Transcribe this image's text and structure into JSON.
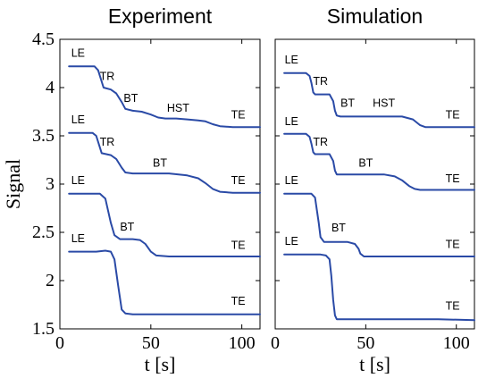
{
  "chart_data": [
    {
      "type": "line",
      "title": "Experiment",
      "xlabel": "t [s]",
      "ylabel": "Signal",
      "xlim": [
        0,
        110
      ],
      "ylim": [
        1.5,
        4.5
      ],
      "xticks": [
        "0",
        "50",
        "100"
      ],
      "yticks": [
        "1.5",
        "2",
        "2.5",
        "3",
        "3.5",
        "4",
        "4.5"
      ],
      "grid": false,
      "series": [
        {
          "x": [
            5,
            19,
            21,
            24,
            28,
            31,
            34,
            36,
            40,
            45,
            50,
            54,
            58,
            64,
            70,
            76,
            80,
            84,
            88,
            95,
            110
          ],
          "y": [
            4.22,
            4.22,
            4.18,
            4.0,
            3.98,
            3.94,
            3.85,
            3.78,
            3.76,
            3.75,
            3.72,
            3.69,
            3.68,
            3.68,
            3.67,
            3.66,
            3.65,
            3.62,
            3.6,
            3.59,
            3.59
          ]
        },
        {
          "x": [
            5,
            18,
            20,
            23,
            28,
            31,
            34,
            36,
            40,
            50,
            60,
            70,
            76,
            80,
            84,
            88,
            95,
            110
          ],
          "y": [
            3.53,
            3.53,
            3.5,
            3.32,
            3.3,
            3.26,
            3.17,
            3.12,
            3.11,
            3.11,
            3.11,
            3.09,
            3.06,
            3.01,
            2.95,
            2.92,
            2.91,
            2.91
          ]
        },
        {
          "x": [
            5,
            22,
            25,
            28,
            30,
            33,
            40,
            44,
            47,
            50,
            53,
            60,
            80,
            110
          ],
          "y": [
            2.9,
            2.9,
            2.85,
            2.6,
            2.47,
            2.43,
            2.43,
            2.42,
            2.38,
            2.3,
            2.26,
            2.25,
            2.25,
            2.25
          ]
        },
        {
          "x": [
            5,
            20,
            25,
            28,
            30,
            32,
            34,
            36,
            40,
            60,
            80,
            110
          ],
          "y": [
            2.3,
            2.3,
            2.31,
            2.3,
            2.22,
            1.95,
            1.7,
            1.66,
            1.65,
            1.65,
            1.65,
            1.65
          ]
        }
      ],
      "annotations": [
        {
          "text": "LE",
          "x": 10,
          "y": 4.32
        },
        {
          "text": "TR",
          "x": 26,
          "y": 4.08
        },
        {
          "text": "BT",
          "x": 39,
          "y": 3.85
        },
        {
          "text": "HST",
          "x": 65,
          "y": 3.75
        },
        {
          "text": "TE",
          "x": 98,
          "y": 3.68
        },
        {
          "text": "LE",
          "x": 10,
          "y": 3.63
        },
        {
          "text": "TR",
          "x": 26,
          "y": 3.4
        },
        {
          "text": "BT",
          "x": 55,
          "y": 3.18
        },
        {
          "text": "TE",
          "x": 98,
          "y": 3.0
        },
        {
          "text": "LE",
          "x": 10,
          "y": 3.0
        },
        {
          "text": "BT",
          "x": 37,
          "y": 2.52
        },
        {
          "text": "TE",
          "x": 98,
          "y": 2.33
        },
        {
          "text": "LE",
          "x": 10,
          "y": 2.4
        },
        {
          "text": "TE",
          "x": 98,
          "y": 1.75
        }
      ]
    },
    {
      "type": "line",
      "title": "Simulation",
      "xlabel": "t [s]",
      "ylabel": "",
      "xlim": [
        0,
        110
      ],
      "ylim": [
        1.5,
        4.5
      ],
      "xticks": [
        "0",
        "50",
        "100"
      ],
      "yticks": [],
      "grid": false,
      "series": [
        {
          "x": [
            5,
            17,
            19,
            20,
            21,
            22,
            30,
            32,
            33,
            34,
            36,
            40,
            50,
            60,
            70,
            76,
            80,
            83,
            90,
            110
          ],
          "y": [
            4.15,
            4.15,
            4.12,
            4.05,
            3.95,
            3.93,
            3.93,
            3.86,
            3.76,
            3.71,
            3.7,
            3.7,
            3.7,
            3.7,
            3.7,
            3.67,
            3.61,
            3.59,
            3.59,
            3.59
          ]
        },
        {
          "x": [
            5,
            17,
            19,
            20,
            21,
            22,
            30,
            32,
            33,
            34,
            36,
            40,
            50,
            60,
            66,
            70,
            74,
            77,
            80,
            90,
            110
          ],
          "y": [
            3.52,
            3.52,
            3.49,
            3.42,
            3.33,
            3.31,
            3.31,
            3.24,
            3.14,
            3.1,
            3.1,
            3.1,
            3.1,
            3.1,
            3.08,
            3.04,
            2.98,
            2.95,
            2.94,
            2.94,
            2.94
          ]
        },
        {
          "x": [
            5,
            20,
            22,
            24,
            25,
            27,
            40,
            44,
            46,
            47,
            49,
            60,
            90,
            110
          ],
          "y": [
            2.9,
            2.9,
            2.86,
            2.6,
            2.45,
            2.4,
            2.4,
            2.38,
            2.33,
            2.28,
            2.25,
            2.25,
            2.25,
            2.25
          ]
        },
        {
          "x": [
            5,
            25,
            28,
            30,
            31,
            32,
            33,
            34,
            40,
            60,
            90,
            110
          ],
          "y": [
            2.27,
            2.27,
            2.26,
            2.22,
            2.05,
            1.8,
            1.64,
            1.6,
            1.6,
            1.6,
            1.6,
            1.59
          ]
        }
      ],
      "annotations": [
        {
          "text": "LE",
          "x": 9,
          "y": 4.25
        },
        {
          "text": "TR",
          "x": 25,
          "y": 4.03
        },
        {
          "text": "BT",
          "x": 40,
          "y": 3.8
        },
        {
          "text": "HST",
          "x": 60,
          "y": 3.8
        },
        {
          "text": "TE",
          "x": 98,
          "y": 3.68
        },
        {
          "text": "LE",
          "x": 9,
          "y": 3.61
        },
        {
          "text": "TR",
          "x": 25,
          "y": 3.4
        },
        {
          "text": "BT",
          "x": 50,
          "y": 3.18
        },
        {
          "text": "TE",
          "x": 98,
          "y": 3.02
        },
        {
          "text": "LE",
          "x": 9,
          "y": 3.0
        },
        {
          "text": "BT",
          "x": 35,
          "y": 2.51
        },
        {
          "text": "TE",
          "x": 98,
          "y": 2.34
        },
        {
          "text": "LE",
          "x": 9,
          "y": 2.37
        },
        {
          "text": "TE",
          "x": 98,
          "y": 1.7
        }
      ]
    }
  ]
}
